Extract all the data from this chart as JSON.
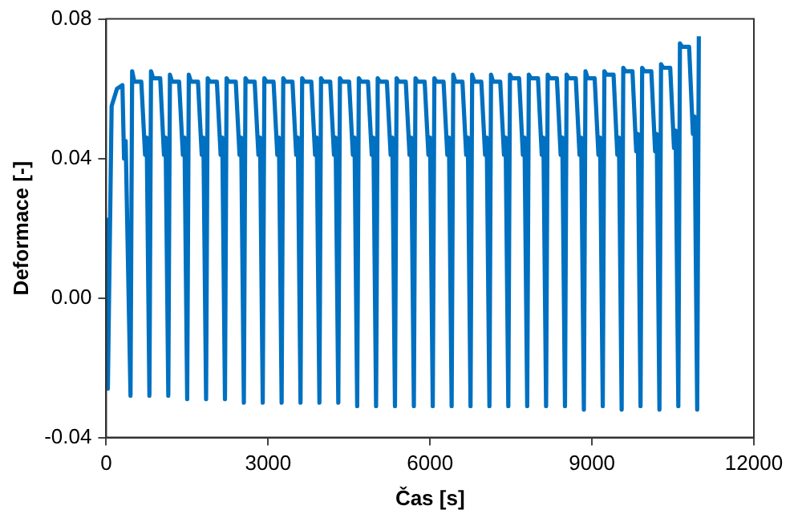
{
  "chart_data": {
    "type": "line",
    "xlabel": "Čas [s]",
    "ylabel": "Deformace [-]",
    "xlim": [
      0,
      12000
    ],
    "xticks": [
      0,
      3000,
      6000,
      9000,
      12000
    ],
    "ylim": [
      -0.04,
      0.08
    ],
    "yticks": [
      -0.04,
      {
        "value": 0,
        "label": "0.00"
      },
      0.04,
      0.08
    ],
    "grid": false,
    "legend": false,
    "marker": "none",
    "line_style": "solid",
    "series": [
      {
        "color": "#0070c0",
        "x": [
          0,
          30,
          100,
          200,
          300,
          330,
          360,
          450,
          480,
          520,
          650,
          720,
          750,
          800,
          830,
          870,
          1000,
          1070,
          1100,
          1150,
          1180,
          1220,
          1350,
          1420,
          1450,
          1500,
          1530,
          1570,
          1700,
          1770,
          1800,
          1850,
          1880,
          1920,
          2050,
          2120,
          2150,
          2200,
          2230,
          2270,
          2400,
          2470,
          2500,
          2550,
          2580,
          2620,
          2750,
          2820,
          2850,
          2900,
          2930,
          2970,
          3100,
          3170,
          3200,
          3250,
          3280,
          3320,
          3450,
          3520,
          3550,
          3600,
          3630,
          3670,
          3800,
          3870,
          3900,
          3950,
          3980,
          4020,
          4150,
          4220,
          4250,
          4300,
          4330,
          4370,
          4500,
          4570,
          4600,
          4650,
          4680,
          4720,
          4850,
          4920,
          4950,
          5000,
          5030,
          5070,
          5200,
          5270,
          5300,
          5350,
          5380,
          5420,
          5550,
          5620,
          5650,
          5700,
          5730,
          5770,
          5900,
          5970,
          6000,
          6050,
          6080,
          6120,
          6250,
          6320,
          6350,
          6400,
          6430,
          6470,
          6600,
          6670,
          6700,
          6750,
          6780,
          6820,
          6950,
          7020,
          7050,
          7100,
          7130,
          7170,
          7300,
          7370,
          7400,
          7450,
          7480,
          7520,
          7650,
          7720,
          7750,
          7800,
          7830,
          7870,
          8000,
          8070,
          8100,
          8150,
          8180,
          8220,
          8350,
          8420,
          8450,
          8500,
          8530,
          8570,
          8700,
          8770,
          8800,
          8850,
          8880,
          8920,
          9050,
          9120,
          9150,
          9200,
          9230,
          9270,
          9400,
          9470,
          9500,
          9550,
          9580,
          9620,
          9750,
          9820,
          9850,
          9900,
          9930,
          9970,
          10100,
          10170,
          10200,
          10250,
          10280,
          10320,
          10450,
          10520,
          10550,
          10600,
          10630,
          10670,
          10800,
          10870,
          10900,
          10950,
          10980
        ],
        "values": [
          0.023,
          -0.026,
          0.055,
          0.06,
          0.061,
          0.04,
          0.045,
          -0.028,
          0.065,
          0.062,
          0.062,
          0.041,
          0.046,
          -0.028,
          0.065,
          0.063,
          0.063,
          0.041,
          0.046,
          -0.028,
          0.064,
          0.062,
          0.062,
          0.041,
          0.046,
          -0.029,
          0.064,
          0.062,
          0.062,
          0.041,
          0.046,
          -0.029,
          0.063,
          0.062,
          0.062,
          0.041,
          0.046,
          -0.029,
          0.063,
          0.062,
          0.062,
          0.041,
          0.046,
          -0.03,
          0.063,
          0.062,
          0.062,
          0.041,
          0.046,
          -0.03,
          0.063,
          0.062,
          0.062,
          0.041,
          0.046,
          -0.03,
          0.063,
          0.062,
          0.062,
          0.041,
          0.046,
          -0.03,
          0.063,
          0.062,
          0.062,
          0.041,
          0.046,
          -0.03,
          0.063,
          0.062,
          0.062,
          0.041,
          0.046,
          -0.03,
          0.063,
          0.062,
          0.062,
          0.041,
          0.046,
          -0.031,
          0.063,
          0.062,
          0.062,
          0.041,
          0.046,
          -0.031,
          0.063,
          0.062,
          0.062,
          0.041,
          0.046,
          -0.031,
          0.063,
          0.062,
          0.062,
          0.041,
          0.046,
          -0.031,
          0.063,
          0.062,
          0.062,
          0.041,
          0.046,
          -0.031,
          0.063,
          0.062,
          0.062,
          0.041,
          0.046,
          -0.031,
          0.064,
          0.062,
          0.062,
          0.041,
          0.046,
          -0.031,
          0.064,
          0.062,
          0.062,
          0.041,
          0.046,
          -0.031,
          0.064,
          0.062,
          0.062,
          0.041,
          0.046,
          -0.031,
          0.064,
          0.063,
          0.063,
          0.041,
          0.046,
          -0.031,
          0.064,
          0.063,
          0.063,
          0.041,
          0.046,
          -0.031,
          0.064,
          0.063,
          0.063,
          0.041,
          0.046,
          -0.031,
          0.064,
          0.063,
          0.063,
          0.041,
          0.046,
          -0.032,
          0.065,
          0.063,
          0.063,
          0.041,
          0.046,
          -0.031,
          0.065,
          0.064,
          0.064,
          0.041,
          0.046,
          -0.032,
          0.066,
          0.065,
          0.065,
          0.042,
          0.047,
          -0.031,
          0.066,
          0.065,
          0.065,
          0.042,
          0.047,
          -0.032,
          0.067,
          0.066,
          0.066,
          0.043,
          0.048,
          -0.031,
          0.073,
          0.072,
          0.072,
          0.047,
          0.052,
          -0.032,
          0.075
        ]
      }
    ]
  }
}
